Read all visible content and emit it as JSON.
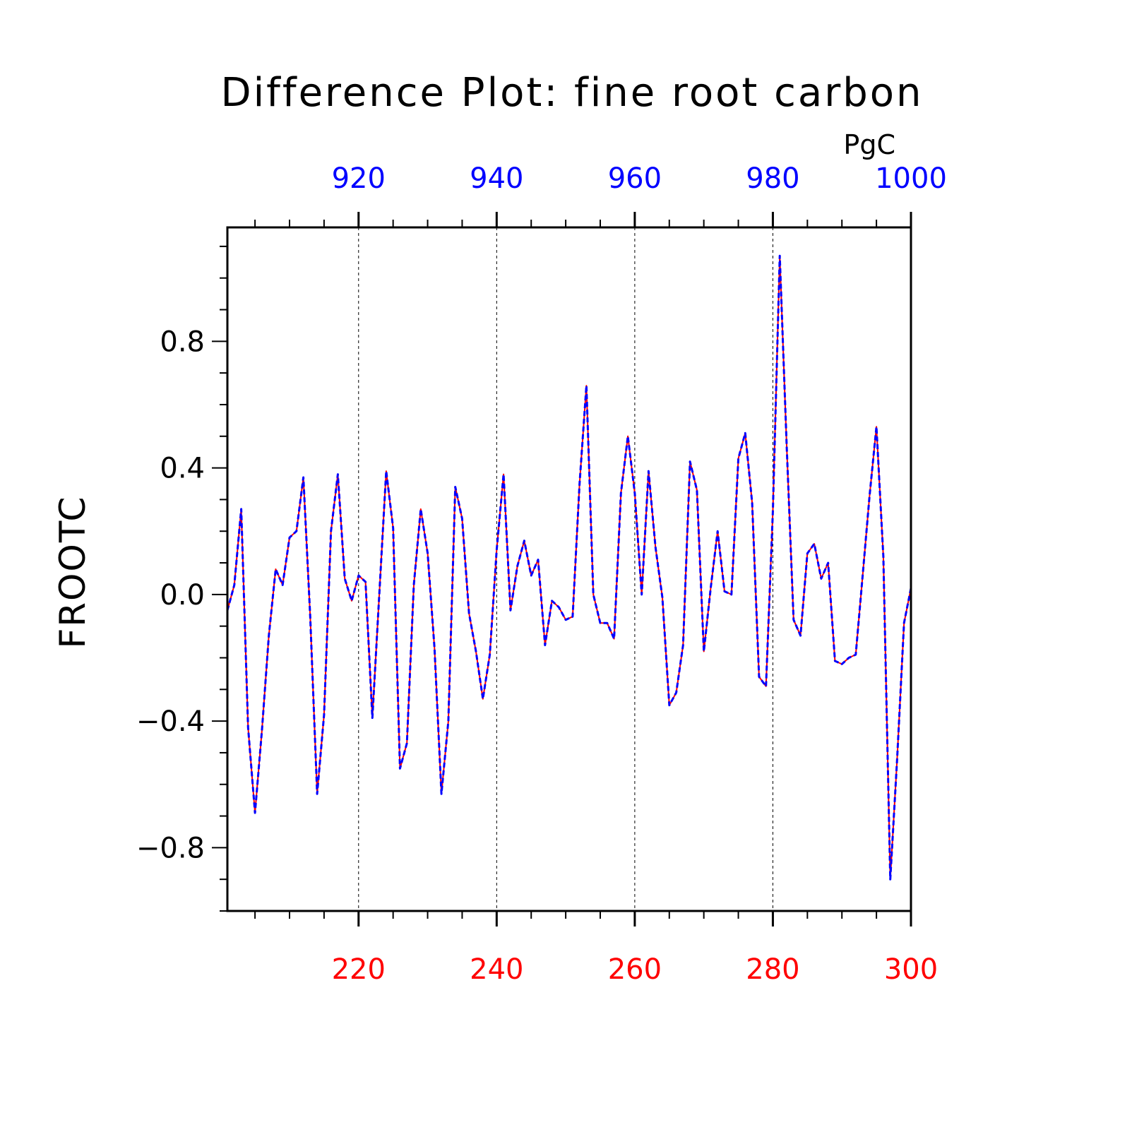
{
  "chart_data": {
    "type": "line",
    "title": "Difference Plot: fine root carbon",
    "units": "PgC",
    "ylabel": "FROOTC",
    "xlim": [
      201,
      300
    ],
    "ylim": [
      -1.0,
      1.16
    ],
    "top_axis_offset": 700,
    "yticks": [
      -0.8,
      -0.4,
      0.0,
      0.4,
      0.8
    ],
    "ytick_labels": [
      "−0.8",
      "−0.4",
      "0.0",
      "0.4",
      "0.8"
    ],
    "xticks_bottom": [
      220,
      240,
      260,
      280,
      300
    ],
    "xtick_labels_bottom": [
      "220",
      "240",
      "260",
      "280",
      "300"
    ],
    "xtick_labels_top": [
      "920",
      "940",
      "960",
      "980",
      "1000"
    ],
    "gridlines_x": [
      220,
      240,
      260,
      280
    ],
    "grid": "dashed vertical at major x ticks",
    "x": [
      201,
      202,
      203,
      204,
      205,
      206,
      207,
      208,
      209,
      210,
      211,
      212,
      213,
      214,
      215,
      216,
      217,
      218,
      219,
      220,
      221,
      222,
      223,
      224,
      225,
      226,
      227,
      228,
      229,
      230,
      231,
      232,
      233,
      234,
      235,
      236,
      237,
      238,
      239,
      240,
      241,
      242,
      243,
      244,
      245,
      246,
      247,
      248,
      249,
      250,
      251,
      252,
      253,
      254,
      255,
      256,
      257,
      258,
      259,
      260,
      261,
      262,
      263,
      264,
      265,
      266,
      267,
      268,
      269,
      270,
      271,
      272,
      273,
      274,
      275,
      276,
      277,
      278,
      279,
      280,
      281,
      282,
      283,
      284,
      285,
      286,
      287,
      288,
      289,
      290,
      291,
      292,
      293,
      294,
      295,
      296,
      297,
      298,
      299,
      300
    ],
    "series": [
      {
        "color": "#ff0000",
        "style": "solid",
        "values": [
          -0.05,
          0.03,
          0.27,
          -0.42,
          -0.69,
          -0.43,
          -0.13,
          0.08,
          0.03,
          0.18,
          0.2,
          0.37,
          -0.07,
          -0.63,
          -0.38,
          0.2,
          0.38,
          0.05,
          -0.02,
          0.06,
          0.04,
          -0.39,
          0.0,
          0.39,
          0.21,
          -0.55,
          -0.47,
          0.03,
          0.27,
          0.13,
          -0.17,
          -0.63,
          -0.4,
          0.34,
          0.24,
          -0.06,
          -0.18,
          -0.33,
          -0.19,
          0.14,
          0.38,
          -0.05,
          0.09,
          0.17,
          0.06,
          0.11,
          -0.16,
          -0.02,
          -0.04,
          -0.08,
          -0.07,
          0.35,
          0.66,
          0.0,
          -0.09,
          -0.09,
          -0.14,
          0.32,
          0.5,
          0.32,
          0.0,
          0.39,
          0.15,
          -0.01,
          -0.35,
          -0.31,
          -0.16,
          0.42,
          0.33,
          -0.18,
          0.02,
          0.2,
          0.01,
          0.0,
          0.43,
          0.51,
          0.29,
          -0.26,
          -0.29,
          0.26,
          1.07,
          0.47,
          -0.08,
          -0.13,
          0.13,
          0.16,
          0.05,
          0.1,
          -0.21,
          -0.22,
          -0.2,
          -0.19,
          0.06,
          0.31,
          0.53,
          0.12,
          -0.9,
          -0.52,
          -0.09,
          0.02
        ]
      },
      {
        "color": "#0000ff",
        "style": "dashed",
        "values": [
          -0.05,
          0.03,
          0.27,
          -0.42,
          -0.69,
          -0.43,
          -0.13,
          0.08,
          0.03,
          0.18,
          0.2,
          0.37,
          -0.07,
          -0.63,
          -0.38,
          0.2,
          0.38,
          0.05,
          -0.02,
          0.06,
          0.04,
          -0.39,
          0.0,
          0.39,
          0.21,
          -0.55,
          -0.47,
          0.03,
          0.27,
          0.13,
          -0.17,
          -0.63,
          -0.4,
          0.34,
          0.24,
          -0.06,
          -0.18,
          -0.33,
          -0.19,
          0.14,
          0.38,
          -0.05,
          0.09,
          0.17,
          0.06,
          0.11,
          -0.16,
          -0.02,
          -0.04,
          -0.08,
          -0.07,
          0.35,
          0.66,
          0.0,
          -0.09,
          -0.09,
          -0.14,
          0.32,
          0.5,
          0.32,
          0.0,
          0.39,
          0.15,
          -0.01,
          -0.35,
          -0.31,
          -0.16,
          0.42,
          0.33,
          -0.18,
          0.02,
          0.2,
          0.01,
          0.0,
          0.43,
          0.51,
          0.29,
          -0.26,
          -0.29,
          0.26,
          1.07,
          0.47,
          -0.08,
          -0.13,
          0.13,
          0.16,
          0.05,
          0.1,
          -0.21,
          -0.22,
          -0.2,
          -0.19,
          0.06,
          0.31,
          0.53,
          0.12,
          -0.9,
          -0.52,
          -0.09,
          0.02
        ]
      }
    ]
  }
}
